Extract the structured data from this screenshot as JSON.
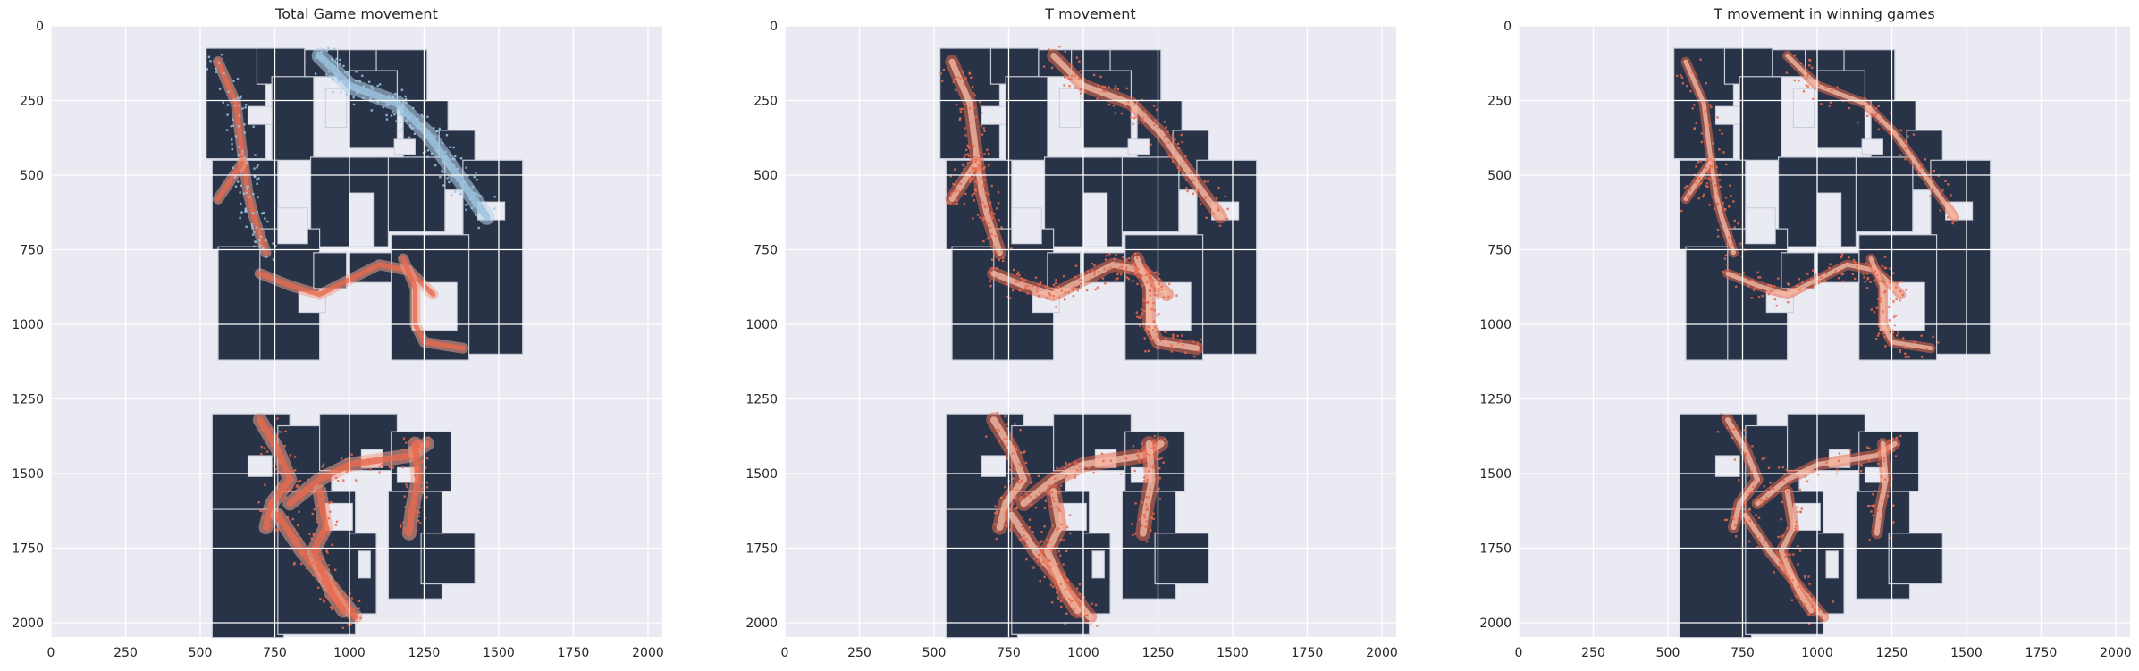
{
  "chart_data": [
    {
      "type": "heatmap",
      "title": "Total Game movement",
      "xlim": [
        0,
        2048
      ],
      "ylim": [
        2048,
        0
      ],
      "xticks": [
        "0",
        "250",
        "500",
        "750",
        "1000",
        "1250",
        "1500",
        "1750",
        "2000"
      ],
      "yticks": [
        "0",
        "250",
        "500",
        "750",
        "1000",
        "1250",
        "1500",
        "1750",
        "2000"
      ],
      "grid": true,
      "colors": {
        "background": "#eaeaf2",
        "map": "#283347",
        "overlay_primary": "#e8694e",
        "overlay_secondary": "#9cc3e0"
      }
    },
    {
      "type": "heatmap",
      "title": "T movement",
      "xlim": [
        0,
        2048
      ],
      "ylim": [
        2048,
        0
      ],
      "xticks": [
        "0",
        "250",
        "500",
        "750",
        "1000",
        "1250",
        "1500",
        "1750",
        "2000"
      ],
      "yticks": [
        "0",
        "250",
        "500",
        "750",
        "1000",
        "1250",
        "1500",
        "1750",
        "2000"
      ],
      "grid": true,
      "colors": {
        "background": "#eaeaf2",
        "map": "#283347",
        "overlay_primary": "#e8694e",
        "overlay_secondary": "#f2b9a3"
      }
    },
    {
      "type": "heatmap",
      "title": "T movement in winning games",
      "xlim": [
        0,
        2048
      ],
      "ylim": [
        2048,
        0
      ],
      "xticks": [
        "0",
        "250",
        "500",
        "750",
        "1000",
        "1250",
        "1500",
        "1750",
        "2000"
      ],
      "yticks": [
        "0",
        "250",
        "500",
        "750",
        "1000",
        "1250",
        "1500",
        "1750",
        "2000"
      ],
      "grid": true,
      "colors": {
        "background": "#eaeaf2",
        "map": "#283347",
        "overlay_primary": "#e8694e",
        "overlay_secondary": "#f2b9a3"
      }
    }
  ]
}
